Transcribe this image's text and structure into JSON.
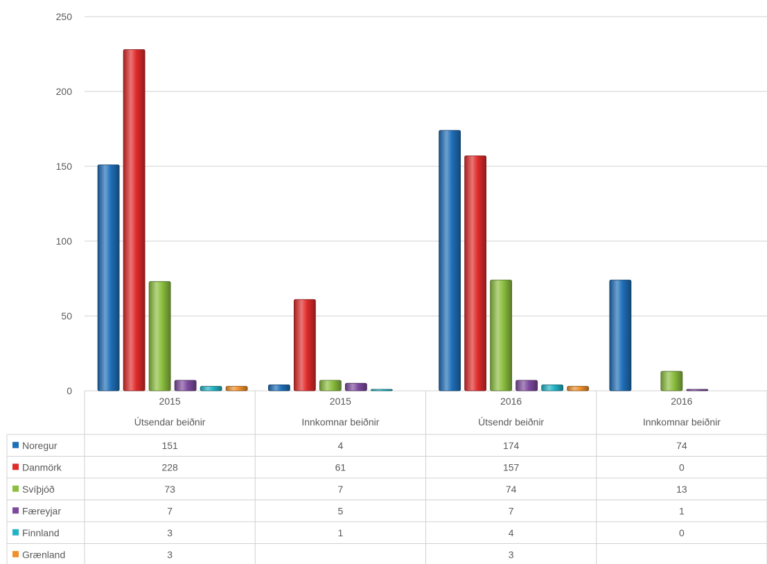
{
  "chart_data": {
    "type": "bar",
    "title": "",
    "xlabel": "",
    "ylabel": "",
    "ylim": [
      0,
      250
    ],
    "yticks": [
      0,
      50,
      100,
      150,
      200,
      250
    ],
    "grid": true,
    "legend": "data-table",
    "categories": [
      {
        "year": "2015",
        "label": "Útsendar beiðnir"
      },
      {
        "year": "2015",
        "label": "Innkomnar beiðnir"
      },
      {
        "year": "2016",
        "label": "Útsendr beiðnir"
      },
      {
        "year": "2016",
        "label": "Innkomnar beiðnir"
      }
    ],
    "series": [
      {
        "name": "Noregur",
        "color": "#1f6fb8",
        "values": [
          151,
          4,
          174,
          74
        ],
        "cells": [
          "151",
          "4",
          "174",
          "74"
        ]
      },
      {
        "name": "Danmörk",
        "color": "#e02b2b",
        "values": [
          228,
          61,
          157,
          0
        ],
        "cells": [
          "228",
          "61",
          "157",
          "0"
        ]
      },
      {
        "name": "Svíþjóð",
        "color": "#8cbf3f",
        "values": [
          73,
          7,
          74,
          13
        ],
        "cells": [
          "73",
          "7",
          "74",
          "13"
        ]
      },
      {
        "name": "Færeyjar",
        "color": "#7d4a9e",
        "values": [
          7,
          5,
          7,
          1
        ],
        "cells": [
          "7",
          "5",
          "7",
          "1"
        ]
      },
      {
        "name": "Finnland",
        "color": "#22b3c4",
        "values": [
          3,
          1,
          4,
          0
        ],
        "cells": [
          "3",
          "1",
          "4",
          "0"
        ]
      },
      {
        "name": "Grænland",
        "color": "#f0902a",
        "values": [
          3,
          null,
          3,
          null
        ],
        "cells": [
          "3",
          "",
          "3",
          ""
        ]
      }
    ]
  }
}
